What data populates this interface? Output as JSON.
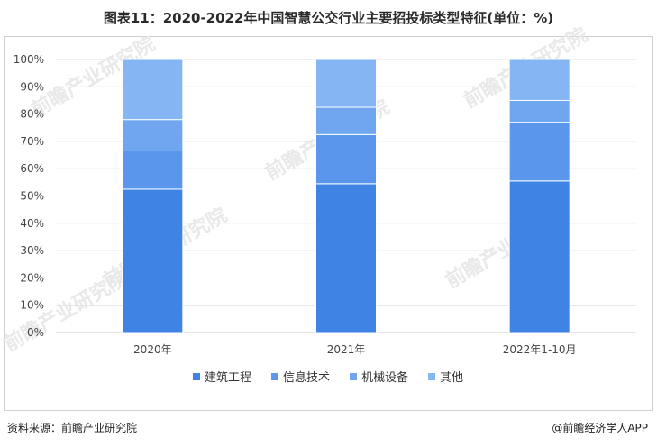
{
  "title": "图表11：2020-2022年中国智慧公交行业主要招投标类型特征(单位：%)",
  "source": "资料来源：前瞻产业研究院",
  "brand": "@前瞻经济学人APP",
  "watermark": "前瞻产业研究院",
  "chart_data": {
    "type": "bar",
    "stacked": true,
    "categories": [
      "2020年",
      "2021年",
      "2022年1-10月"
    ],
    "series": [
      {
        "name": "建筑工程",
        "values": [
          52.5,
          54.5,
          55.5
        ],
        "color": "#3f84e5"
      },
      {
        "name": "信息技术",
        "values": [
          14,
          18,
          21.5
        ],
        "color": "#5a97ec"
      },
      {
        "name": "机械设备",
        "values": [
          11.5,
          10,
          8
        ],
        "color": "#6fa6ef"
      },
      {
        "name": "其他",
        "values": [
          22,
          17.5,
          15
        ],
        "color": "#86b5f3"
      }
    ],
    "yticks": [
      "0%",
      "10%",
      "20%",
      "30%",
      "40%",
      "50%",
      "60%",
      "70%",
      "80%",
      "90%",
      "100%"
    ],
    "ylim": [
      0,
      100
    ],
    "grid": true,
    "legend": "bottom"
  }
}
